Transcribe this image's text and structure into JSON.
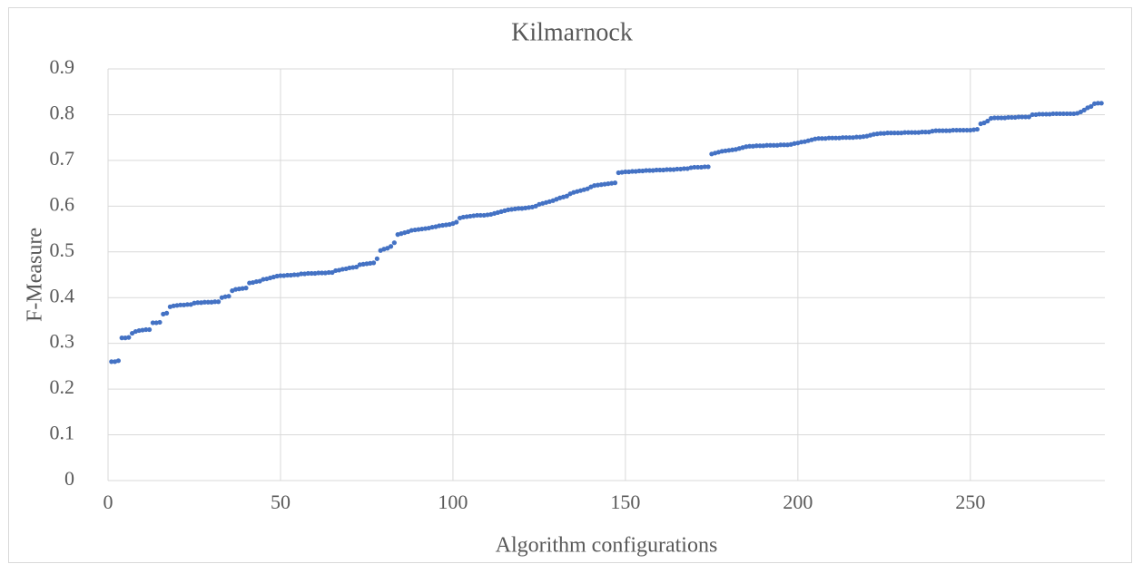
{
  "chart_data": {
    "type": "scatter",
    "title": "Kilmarnock",
    "xlabel": "Algorithm configurations",
    "ylabel": "F-Measure",
    "color": "#4472c4",
    "grid": true,
    "xlim": [
      0,
      289
    ],
    "xticks": [
      0,
      50,
      100,
      150,
      200,
      250
    ],
    "ylim": [
      0,
      0.9
    ],
    "yticks": [
      0,
      0.1,
      0.2,
      0.3,
      0.4,
      0.5,
      0.6,
      0.7,
      0.8,
      0.9
    ],
    "x": [
      1,
      2,
      3,
      4,
      5,
      6,
      7,
      8,
      9,
      10,
      11,
      12,
      13,
      14,
      15,
      16,
      17,
      18,
      19,
      20,
      21,
      22,
      23,
      24,
      25,
      26,
      27,
      28,
      29,
      30,
      31,
      32,
      33,
      34,
      35,
      36,
      37,
      38,
      39,
      40,
      41,
      42,
      43,
      44,
      45,
      46,
      47,
      48,
      49,
      50,
      51,
      52,
      53,
      54,
      55,
      56,
      57,
      58,
      59,
      60,
      61,
      62,
      63,
      64,
      65,
      66,
      67,
      68,
      69,
      70,
      71,
      72,
      73,
      74,
      75,
      76,
      77,
      78,
      79,
      80,
      81,
      82,
      83,
      84,
      85,
      86,
      87,
      88,
      89,
      90,
      91,
      92,
      93,
      94,
      95,
      96,
      97,
      98,
      99,
      100,
      101,
      102,
      103,
      104,
      105,
      106,
      107,
      108,
      109,
      110,
      111,
      112,
      113,
      114,
      115,
      116,
      117,
      118,
      119,
      120,
      121,
      122,
      123,
      124,
      125,
      126,
      127,
      128,
      129,
      130,
      131,
      132,
      133,
      134,
      135,
      136,
      137,
      138,
      139,
      140,
      141,
      142,
      143,
      144,
      145,
      146,
      147,
      148,
      149,
      150,
      151,
      152,
      153,
      154,
      155,
      156,
      157,
      158,
      159,
      160,
      161,
      162,
      163,
      164,
      165,
      166,
      167,
      168,
      169,
      170,
      171,
      172,
      173,
      174,
      175,
      176,
      177,
      178,
      179,
      180,
      181,
      182,
      183,
      184,
      185,
      186,
      187,
      188,
      189,
      190,
      191,
      192,
      193,
      194,
      195,
      196,
      197,
      198,
      199,
      200,
      201,
      202,
      203,
      204,
      205,
      206,
      207,
      208,
      209,
      210,
      211,
      212,
      213,
      214,
      215,
      216,
      217,
      218,
      219,
      220,
      221,
      222,
      223,
      224,
      225,
      226,
      227,
      228,
      229,
      230,
      231,
      232,
      233,
      234,
      235,
      236,
      237,
      238,
      239,
      240,
      241,
      242,
      243,
      244,
      245,
      246,
      247,
      248,
      249,
      250,
      251,
      252,
      253,
      254,
      255,
      256,
      257,
      258,
      259,
      260,
      261,
      262,
      263,
      264,
      265,
      266,
      267,
      268,
      269,
      270,
      271,
      272,
      273,
      274,
      275,
      276,
      277,
      278,
      279,
      280,
      281,
      282,
      283,
      284,
      285,
      286,
      287,
      288
    ],
    "values": [
      0.26,
      0.26,
      0.262,
      0.312,
      0.312,
      0.313,
      0.322,
      0.326,
      0.328,
      0.329,
      0.33,
      0.33,
      0.345,
      0.345,
      0.346,
      0.364,
      0.366,
      0.38,
      0.382,
      0.383,
      0.384,
      0.384,
      0.385,
      0.385,
      0.388,
      0.389,
      0.389,
      0.39,
      0.39,
      0.39,
      0.391,
      0.391,
      0.4,
      0.402,
      0.403,
      0.415,
      0.418,
      0.419,
      0.42,
      0.421,
      0.432,
      0.433,
      0.435,
      0.436,
      0.44,
      0.441,
      0.443,
      0.445,
      0.447,
      0.448,
      0.448,
      0.449,
      0.449,
      0.45,
      0.45,
      0.452,
      0.452,
      0.453,
      0.453,
      0.453,
      0.454,
      0.454,
      0.454,
      0.455,
      0.455,
      0.459,
      0.46,
      0.462,
      0.463,
      0.465,
      0.466,
      0.467,
      0.472,
      0.473,
      0.474,
      0.475,
      0.476,
      0.485,
      0.503,
      0.506,
      0.508,
      0.512,
      0.52,
      0.538,
      0.54,
      0.542,
      0.544,
      0.547,
      0.548,
      0.549,
      0.55,
      0.551,
      0.552,
      0.554,
      0.555,
      0.557,
      0.558,
      0.559,
      0.56,
      0.562,
      0.565,
      0.574,
      0.576,
      0.577,
      0.578,
      0.579,
      0.58,
      0.58,
      0.58,
      0.581,
      0.582,
      0.584,
      0.586,
      0.588,
      0.59,
      0.592,
      0.593,
      0.594,
      0.595,
      0.595,
      0.596,
      0.597,
      0.598,
      0.6,
      0.604,
      0.606,
      0.608,
      0.61,
      0.612,
      0.615,
      0.618,
      0.62,
      0.622,
      0.627,
      0.63,
      0.632,
      0.634,
      0.636,
      0.638,
      0.642,
      0.645,
      0.646,
      0.647,
      0.648,
      0.649,
      0.65,
      0.651,
      0.673,
      0.674,
      0.675,
      0.675,
      0.676,
      0.676,
      0.677,
      0.677,
      0.678,
      0.678,
      0.678,
      0.679,
      0.679,
      0.679,
      0.68,
      0.68,
      0.68,
      0.681,
      0.681,
      0.682,
      0.682,
      0.684,
      0.685,
      0.685,
      0.685,
      0.686,
      0.686,
      0.714,
      0.716,
      0.718,
      0.72,
      0.721,
      0.722,
      0.723,
      0.724,
      0.726,
      0.728,
      0.73,
      0.731,
      0.731,
      0.732,
      0.732,
      0.732,
      0.733,
      0.733,
      0.733,
      0.733,
      0.734,
      0.734,
      0.734,
      0.735,
      0.737,
      0.738,
      0.74,
      0.741,
      0.743,
      0.745,
      0.747,
      0.748,
      0.748,
      0.748,
      0.749,
      0.749,
      0.749,
      0.749,
      0.75,
      0.75,
      0.75,
      0.75,
      0.751,
      0.751,
      0.752,
      0.753,
      0.755,
      0.757,
      0.758,
      0.759,
      0.759,
      0.76,
      0.76,
      0.76,
      0.76,
      0.76,
      0.761,
      0.761,
      0.761,
      0.761,
      0.761,
      0.762,
      0.762,
      0.762,
      0.764,
      0.765,
      0.765,
      0.765,
      0.765,
      0.765,
      0.766,
      0.766,
      0.766,
      0.766,
      0.766,
      0.766,
      0.767,
      0.768,
      0.78,
      0.782,
      0.786,
      0.792,
      0.793,
      0.793,
      0.793,
      0.793,
      0.794,
      0.794,
      0.794,
      0.795,
      0.795,
      0.795,
      0.795,
      0.8,
      0.8,
      0.801,
      0.801,
      0.801,
      0.801,
      0.802,
      0.802,
      0.802,
      0.802,
      0.802,
      0.802,
      0.802,
      0.803,
      0.806,
      0.81,
      0.815,
      0.818,
      0.824,
      0.825,
      0.825
    ]
  }
}
